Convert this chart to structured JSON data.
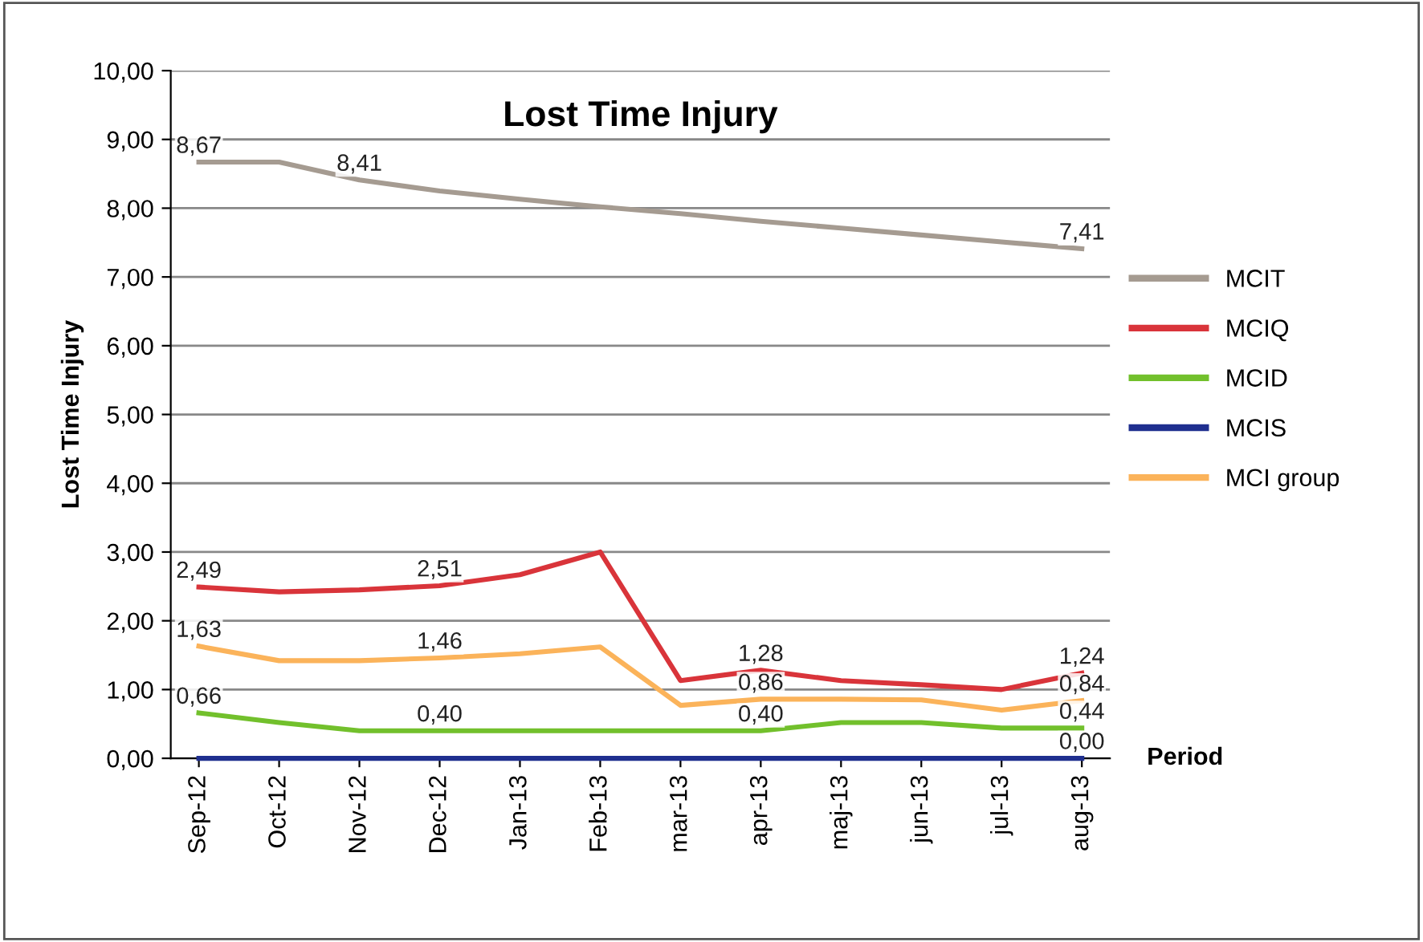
{
  "chart_data": {
    "type": "line",
    "title": "Lost Time Injury",
    "xlabel": "Period",
    "ylabel": "Lost Time Injury",
    "categories": [
      "Sep-12",
      "Oct-12",
      "Nov-12",
      "Dec-12",
      "Jan-13",
      "Feb-13",
      "mar-13",
      "apr-13",
      "maj-13",
      "jun-13",
      "jul-13",
      "aug-13"
    ],
    "series": [
      {
        "name": "MCIT",
        "color": "#a59b91",
        "values": [
          8.67,
          8.67,
          8.41,
          8.25,
          8.13,
          8.02,
          7.92,
          7.81,
          7.71,
          7.61,
          7.51,
          7.41
        ],
        "value_labels": [
          "8,67",
          null,
          "8,41",
          null,
          null,
          null,
          null,
          null,
          null,
          null,
          null,
          "7,41"
        ]
      },
      {
        "name": "MCIQ",
        "color": "#d9343a",
        "values": [
          2.49,
          2.42,
          2.45,
          2.51,
          2.67,
          3.0,
          1.13,
          1.28,
          1.13,
          1.07,
          1.0,
          1.24
        ],
        "value_labels": [
          "2,49",
          null,
          null,
          "2,51",
          null,
          null,
          null,
          "1,28",
          null,
          null,
          null,
          "1,24"
        ]
      },
      {
        "name": "MCID",
        "color": "#72c02c",
        "values": [
          0.66,
          0.52,
          0.4,
          0.4,
          0.4,
          0.4,
          0.4,
          0.4,
          0.52,
          0.52,
          0.44,
          0.44
        ],
        "value_labels": [
          "0,66",
          null,
          null,
          "0,40",
          null,
          null,
          null,
          "0,40",
          null,
          null,
          null,
          "0,44"
        ]
      },
      {
        "name": "MCIS",
        "color": "#1f2f8f",
        "values": [
          0,
          0,
          0,
          0,
          0,
          0,
          0,
          0,
          0,
          0,
          0,
          0
        ],
        "value_labels": [
          null,
          null,
          null,
          null,
          null,
          null,
          null,
          null,
          null,
          null,
          null,
          "0,00"
        ]
      },
      {
        "name": "MCI group",
        "color": "#fbb35a",
        "values": [
          1.63,
          1.42,
          1.42,
          1.46,
          1.52,
          1.62,
          0.77,
          0.86,
          0.86,
          0.85,
          0.7,
          0.84
        ],
        "value_labels": [
          "1,63",
          null,
          null,
          "1,46",
          null,
          null,
          null,
          "0,86",
          null,
          null,
          null,
          "0,84"
        ]
      }
    ],
    "ylim": [
      0,
      10
    ],
    "yticks": [
      {
        "value": 0,
        "label": "0,00"
      },
      {
        "value": 1,
        "label": "1,00"
      },
      {
        "value": 2,
        "label": "2,00"
      },
      {
        "value": 3,
        "label": "3,00"
      },
      {
        "value": 4,
        "label": "4,00"
      },
      {
        "value": 5,
        "label": "5,00"
      },
      {
        "value": 6,
        "label": "6,00"
      },
      {
        "value": 7,
        "label": "7,00"
      },
      {
        "value": 8,
        "label": "8,00"
      },
      {
        "value": 9,
        "label": "9,00"
      },
      {
        "value": 10,
        "label": "10,00"
      }
    ],
    "grid": "y",
    "legend": "right",
    "marker": "none",
    "line_style": "solid"
  }
}
